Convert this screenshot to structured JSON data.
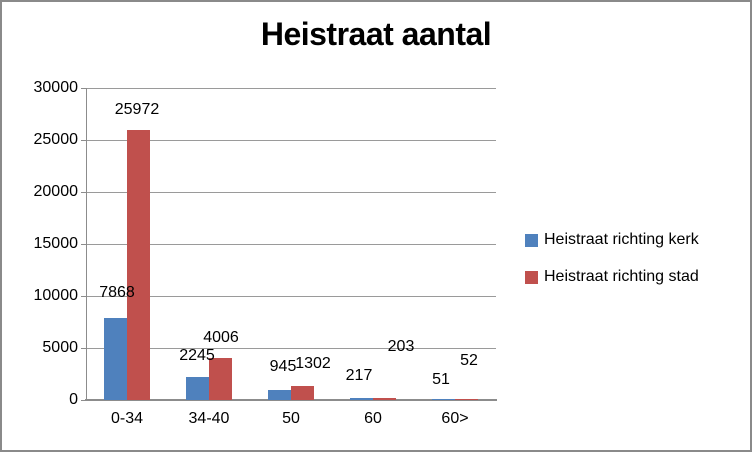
{
  "chart_data": {
    "type": "bar",
    "title": "Heistraat aantal",
    "categories": [
      "0-34",
      "34-40",
      "50",
      "60",
      "60>"
    ],
    "series": [
      {
        "name": "Heistraat richting kerk",
        "color": "#4F81BD",
        "values": [
          7868,
          2245,
          945,
          217,
          51
        ]
      },
      {
        "name": "Heistraat richting stad",
        "color": "#C0504D",
        "values": [
          25972,
          4006,
          1302,
          203,
          52
        ]
      }
    ],
    "ylim": [
      0,
      30000
    ],
    "yticks": [
      0,
      5000,
      10000,
      15000,
      20000,
      25000,
      30000
    ],
    "xlabel": "",
    "ylabel": "",
    "grid": true,
    "legend_position": "right",
    "data_labels": true
  },
  "colors": {
    "series_kerk": "#4F81BD",
    "series_stad": "#C0504D",
    "gridline": "#9A9A9A",
    "axis": "#8C8C8C",
    "text": "#000000",
    "frame_border": "#8A8A8A",
    "background": "#FFFFFF"
  }
}
